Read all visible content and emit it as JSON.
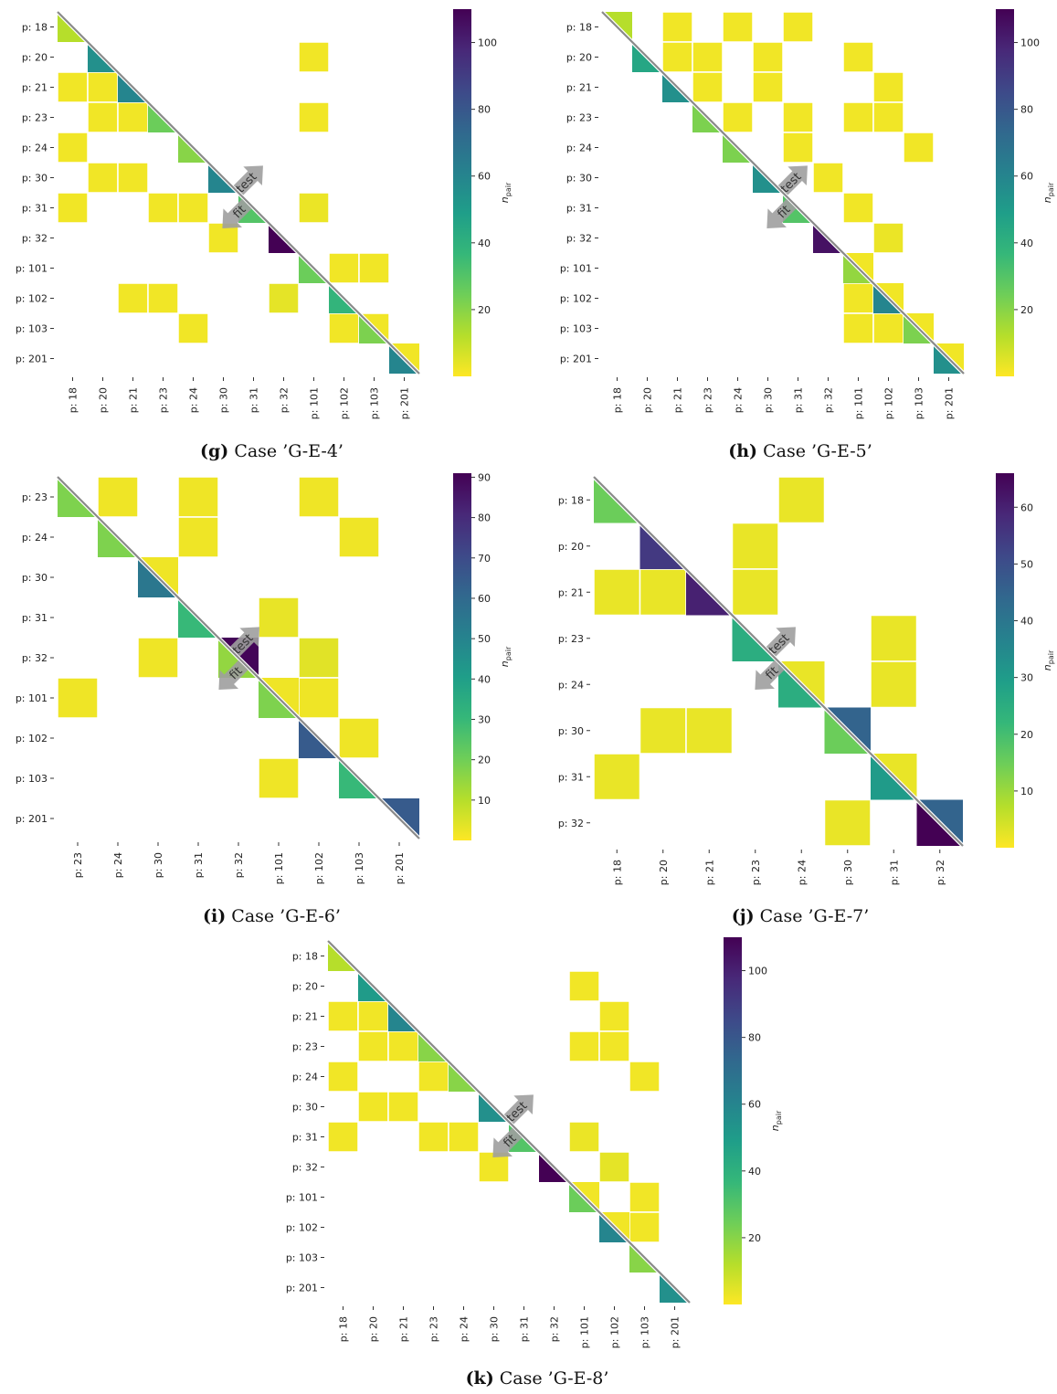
{
  "colorbar_label": "n",
  "colorbar_label_sub": "pair",
  "arrow_labels": {
    "fit": "fit",
    "test": "test"
  },
  "viridis": [
    "#fde725",
    "#b5de2b",
    "#6ece58",
    "#35b779",
    "#1f9e89",
    "#26828e",
    "#31688e",
    "#3e4989",
    "#482878",
    "#440154"
  ],
  "chart_data": [
    {
      "type": "heatmap",
      "caption_tag": "(g)",
      "caption_text": "Case ’G-E-4’",
      "labels": [
        "p: 18",
        "p: 20",
        "p: 21",
        "p: 23",
        "p: 24",
        "p: 30",
        "p: 31",
        "p: 32",
        "p: 101",
        "p: 102",
        "p: 103",
        "p: 201"
      ],
      "vmax": 110,
      "colorbar_ticks": [
        20,
        40,
        60,
        80,
        100
      ],
      "diagonal": [
        [
          12,
          null
        ],
        [
          55,
          null
        ],
        [
          60,
          null
        ],
        [
          25,
          null
        ],
        [
          20,
          null
        ],
        [
          60,
          null
        ],
        [
          30,
          null
        ],
        [
          110,
          null
        ],
        [
          25,
          null
        ],
        [
          38,
          null
        ],
        [
          22,
          null
        ],
        [
          60,
          2
        ]
      ],
      "cells": [
        [
          2,
          0,
          2
        ],
        [
          2,
          1,
          2
        ],
        [
          4,
          0,
          2
        ],
        [
          5,
          1,
          2
        ],
        [
          5,
          2,
          2
        ],
        [
          6,
          0,
          2
        ],
        [
          9,
          2,
          2
        ],
        [
          9,
          3,
          2
        ],
        [
          10,
          4,
          2
        ],
        [
          3,
          1,
          2
        ],
        [
          3,
          2,
          2
        ],
        [
          6,
          3,
          2
        ],
        [
          6,
          4,
          2
        ],
        [
          7,
          5,
          2
        ],
        [
          8,
          9,
          2
        ],
        [
          8,
          10,
          2
        ],
        [
          9,
          7,
          4
        ],
        [
          10,
          9,
          2
        ],
        [
          10,
          10,
          2
        ],
        [
          1,
          8,
          2
        ],
        [
          3,
          8,
          2
        ],
        [
          6,
          8,
          3
        ]
      ]
    },
    {
      "type": "heatmap",
      "caption_tag": "(h)",
      "caption_text": "Case ’G-E-5’",
      "labels": [
        "p: 18",
        "p: 20",
        "p: 21",
        "p: 23",
        "p: 24",
        "p: 30",
        "p: 31",
        "p: 32",
        "p: 101",
        "p: 102",
        "p: 103",
        "p: 201"
      ],
      "vmax": 110,
      "colorbar_ticks": [
        20,
        40,
        60,
        80,
        100
      ],
      "diagonal": [
        [
          null,
          12
        ],
        [
          45,
          null
        ],
        [
          55,
          null
        ],
        [
          22,
          null
        ],
        [
          22,
          null
        ],
        [
          55,
          null
        ],
        [
          30,
          null
        ],
        [
          105,
          null
        ],
        [
          18,
          2
        ],
        [
          60,
          2
        ],
        [
          22,
          2
        ],
        [
          55,
          2
        ]
      ],
      "cells": [
        [
          0,
          2,
          2
        ],
        [
          0,
          4,
          2
        ],
        [
          0,
          6,
          2
        ],
        [
          1,
          2,
          2
        ],
        [
          1,
          3,
          2
        ],
        [
          1,
          5,
          2
        ],
        [
          1,
          8,
          2
        ],
        [
          2,
          3,
          2
        ],
        [
          2,
          5,
          2
        ],
        [
          2,
          9,
          2
        ],
        [
          3,
          4,
          2
        ],
        [
          3,
          6,
          2
        ],
        [
          3,
          8,
          2
        ],
        [
          3,
          9,
          2
        ],
        [
          4,
          6,
          2
        ],
        [
          4,
          10,
          2
        ],
        [
          5,
          7,
          2
        ],
        [
          6,
          8,
          2
        ],
        [
          7,
          9,
          3
        ],
        [
          9,
          8,
          2
        ],
        [
          10,
          8,
          2
        ],
        [
          10,
          9,
          2
        ]
      ]
    },
    {
      "type": "heatmap",
      "caption_tag": "(i)",
      "caption_text": "Case ’G-E-6’",
      "labels": [
        "p: 23",
        "p: 24",
        "p: 30",
        "p: 31",
        "p: 32",
        "p: 101",
        "p: 102",
        "p: 103",
        "p: 201"
      ],
      "vmax": 91,
      "colorbar_ticks": [
        10,
        20,
        30,
        40,
        50,
        60,
        70,
        80,
        90
      ],
      "diagonal": [
        [
          18,
          null
        ],
        [
          18,
          null
        ],
        [
          55,
          2
        ],
        [
          30,
          null
        ],
        [
          15,
          90
        ],
        [
          18,
          2
        ],
        [
          65,
          null
        ],
        [
          30,
          null
        ],
        [
          null,
          65
        ]
      ],
      "cells": [
        [
          0,
          1,
          2
        ],
        [
          0,
          3,
          2
        ],
        [
          0,
          6,
          2
        ],
        [
          1,
          3,
          2
        ],
        [
          1,
          7,
          2
        ],
        [
          3,
          5,
          3
        ],
        [
          4,
          2,
          2
        ],
        [
          4,
          6,
          4
        ],
        [
          5,
          0,
          2
        ],
        [
          5,
          6,
          2
        ],
        [
          6,
          7,
          2
        ],
        [
          7,
          5,
          2
        ]
      ]
    },
    {
      "type": "heatmap",
      "caption_tag": "(j)",
      "caption_text": "Case ’G-E-7’",
      "labels": [
        "p: 18",
        "p: 20",
        "p: 21",
        "p: 23",
        "p: 24",
        "p: 30",
        "p: 31",
        "p: 32"
      ],
      "vmax": 66,
      "colorbar_ticks": [
        10,
        20,
        30,
        40,
        50,
        60
      ],
      "diagonal": [
        [
          15,
          null
        ],
        [
          55,
          null
        ],
        [
          60,
          null
        ],
        [
          25,
          null
        ],
        [
          25,
          2
        ],
        [
          15,
          45
        ],
        [
          30,
          2
        ],
        [
          66,
          45
        ]
      ],
      "cells": [
        [
          0,
          4,
          2
        ],
        [
          1,
          3,
          2
        ],
        [
          2,
          0,
          2
        ],
        [
          2,
          1,
          2
        ],
        [
          2,
          3,
          2
        ],
        [
          3,
          6,
          2
        ],
        [
          4,
          6,
          2
        ],
        [
          5,
          1,
          2
        ],
        [
          5,
          2,
          2
        ],
        [
          6,
          0,
          2
        ],
        [
          7,
          5,
          2
        ]
      ]
    },
    {
      "type": "heatmap",
      "caption_tag": "(k)",
      "caption_text": "Case ’G-E-8’",
      "labels": [
        "p: 18",
        "p: 20",
        "p: 21",
        "p: 23",
        "p: 24",
        "p: 30",
        "p: 31",
        "p: 32",
        "p: 101",
        "p: 102",
        "p: 103",
        "p: 201"
      ],
      "vmax": 110,
      "colorbar_ticks": [
        20,
        40,
        60,
        80,
        100
      ],
      "diagonal": [
        [
          12,
          null
        ],
        [
          50,
          null
        ],
        [
          60,
          null
        ],
        [
          20,
          null
        ],
        [
          20,
          null
        ],
        [
          55,
          null
        ],
        [
          30,
          null
        ],
        [
          110,
          null
        ],
        [
          25,
          2
        ],
        [
          60,
          2
        ],
        [
          20,
          null
        ],
        [
          55,
          null
        ]
      ],
      "cells": [
        [
          1,
          8,
          2
        ],
        [
          2,
          0,
          2
        ],
        [
          2,
          1,
          2
        ],
        [
          2,
          9,
          2
        ],
        [
          3,
          1,
          2
        ],
        [
          3,
          2,
          2
        ],
        [
          3,
          8,
          2
        ],
        [
          3,
          9,
          2
        ],
        [
          4,
          0,
          2
        ],
        [
          4,
          3,
          2
        ],
        [
          4,
          10,
          2
        ],
        [
          5,
          1,
          2
        ],
        [
          5,
          2,
          2
        ],
        [
          6,
          0,
          2
        ],
        [
          6,
          3,
          2
        ],
        [
          6,
          4,
          2
        ],
        [
          6,
          8,
          3
        ],
        [
          7,
          5,
          2
        ],
        [
          7,
          9,
          4
        ],
        [
          8,
          10,
          2
        ],
        [
          9,
          10,
          2
        ]
      ]
    }
  ]
}
